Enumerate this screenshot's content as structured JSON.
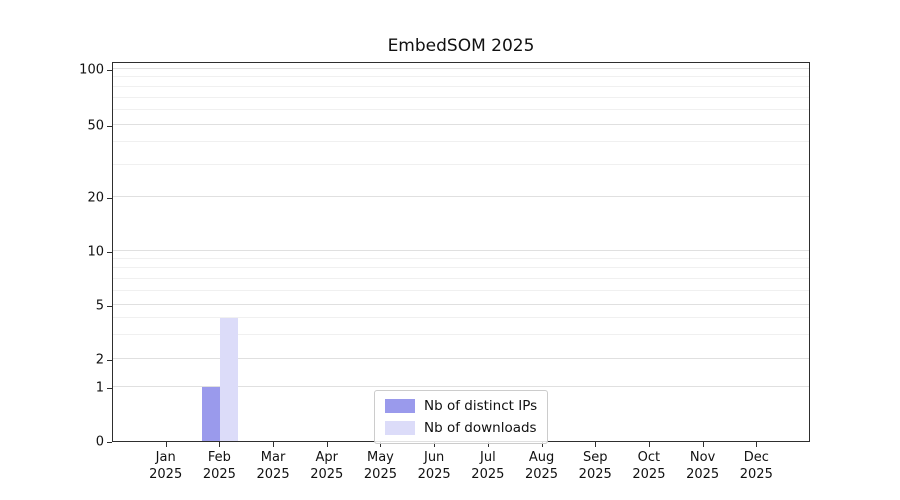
{
  "title": "EmbedSOM 2025",
  "chart_data": {
    "type": "bar",
    "title": "EmbedSOM 2025",
    "categories": [
      {
        "month": "Jan",
        "year": "2025"
      },
      {
        "month": "Feb",
        "year": "2025"
      },
      {
        "month": "Mar",
        "year": "2025"
      },
      {
        "month": "Apr",
        "year": "2025"
      },
      {
        "month": "May",
        "year": "2025"
      },
      {
        "month": "Jun",
        "year": "2025"
      },
      {
        "month": "Jul",
        "year": "2025"
      },
      {
        "month": "Aug",
        "year": "2025"
      },
      {
        "month": "Sep",
        "year": "2025"
      },
      {
        "month": "Oct",
        "year": "2025"
      },
      {
        "month": "Nov",
        "year": "2025"
      },
      {
        "month": "Dec",
        "year": "2025"
      }
    ],
    "series": [
      {
        "name": "Nb of distinct IPs",
        "color": "#9a9aec",
        "values": [
          0,
          1,
          0,
          0,
          0,
          0,
          0,
          0,
          0,
          0,
          0,
          0
        ]
      },
      {
        "name": "Nb of downloads",
        "color": "#dcdcf9",
        "values": [
          0,
          4,
          0,
          0,
          0,
          0,
          0,
          0,
          0,
          0,
          0,
          0
        ]
      }
    ],
    "y_axis": {
      "scale": "symlog",
      "major_ticks": [
        0,
        1,
        2,
        5,
        10,
        20,
        50,
        100
      ],
      "minor_ticks": [
        3,
        4,
        6,
        7,
        8,
        9,
        30,
        40,
        60,
        70,
        80,
        90
      ],
      "range": [
        0,
        110
      ]
    },
    "x_axis": {
      "label_lines": 2
    },
    "legend": {
      "position": "bottom-center"
    },
    "grid": true
  }
}
